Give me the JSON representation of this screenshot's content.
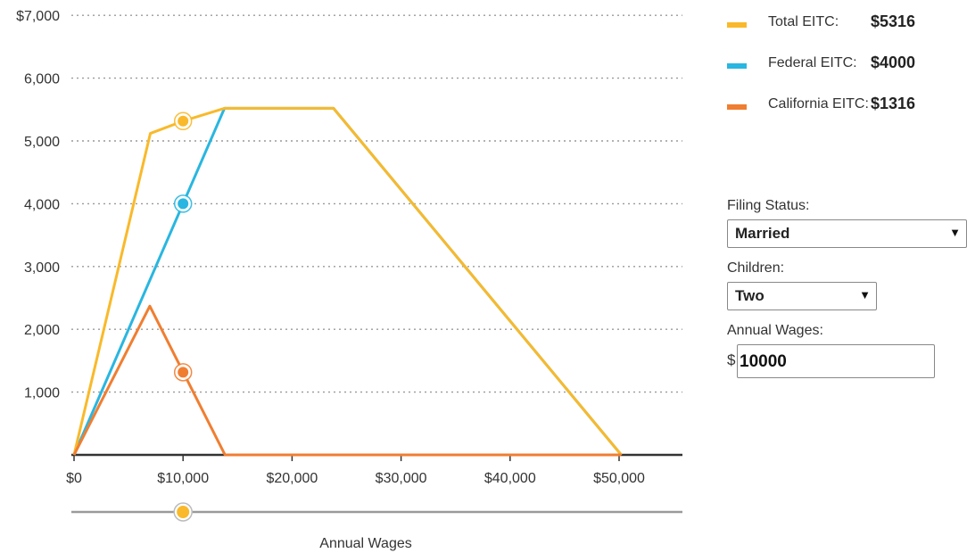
{
  "chart_data": {
    "type": "line",
    "xlabel": "Annual Wages",
    "xlim": [
      0,
      55000
    ],
    "ylim": [
      0,
      7000
    ],
    "x_ticks": [
      "$0",
      "$10,000",
      "$20,000",
      "$30,000",
      "$40,000",
      "$50,000"
    ],
    "x_tick_values": [
      0,
      10000,
      20000,
      30000,
      40000,
      50000
    ],
    "y_ticks": [
      "",
      "1,000",
      "2,000",
      "3,000",
      "4,000",
      "5,000",
      "6,000",
      "$7,000"
    ],
    "y_tick_values": [
      0,
      1000,
      2000,
      3000,
      4000,
      5000,
      6000,
      7000
    ],
    "grid": "horizontal dotted",
    "legend_position": "right",
    "series": [
      {
        "name": "Federal EITC",
        "color": "#29b6e0",
        "points": [
          [
            0,
            0
          ],
          [
            13800,
            5520
          ],
          [
            23800,
            5520
          ],
          [
            50200,
            0
          ]
        ],
        "current": [
          10000,
          4000
        ]
      },
      {
        "name": "Total EITC",
        "color": "#f9b92a",
        "points": [
          [
            0,
            0
          ],
          [
            7000,
            5120
          ],
          [
            10000,
            5316
          ],
          [
            13800,
            5520
          ],
          [
            23800,
            5520
          ],
          [
            50200,
            0
          ]
        ],
        "current": [
          10000,
          5316
        ]
      },
      {
        "name": "California EITC",
        "color": "#f07e31",
        "points": [
          [
            0,
            0
          ],
          [
            6950,
            2370
          ],
          [
            13850,
            0
          ],
          [
            50200,
            0
          ]
        ],
        "current": [
          10000,
          1316
        ]
      }
    ],
    "slider": {
      "value": 10000,
      "color": "#f9b92a"
    }
  },
  "legend": [
    {
      "label": "Total EITC:",
      "value": "$5316",
      "color": "#f9b92a"
    },
    {
      "label": "Federal EITC:",
      "value": "$4000",
      "color": "#29b6e0"
    },
    {
      "label": "California EITC:",
      "value": "$1316",
      "color": "#f07e31"
    }
  ],
  "controls": {
    "filing_status_label": "Filing Status:",
    "filing_status_value": "Married",
    "children_label": "Children:",
    "children_value": "Two",
    "wages_label": "Annual Wages:",
    "wages_currency": "$",
    "wages_value": "10000"
  }
}
